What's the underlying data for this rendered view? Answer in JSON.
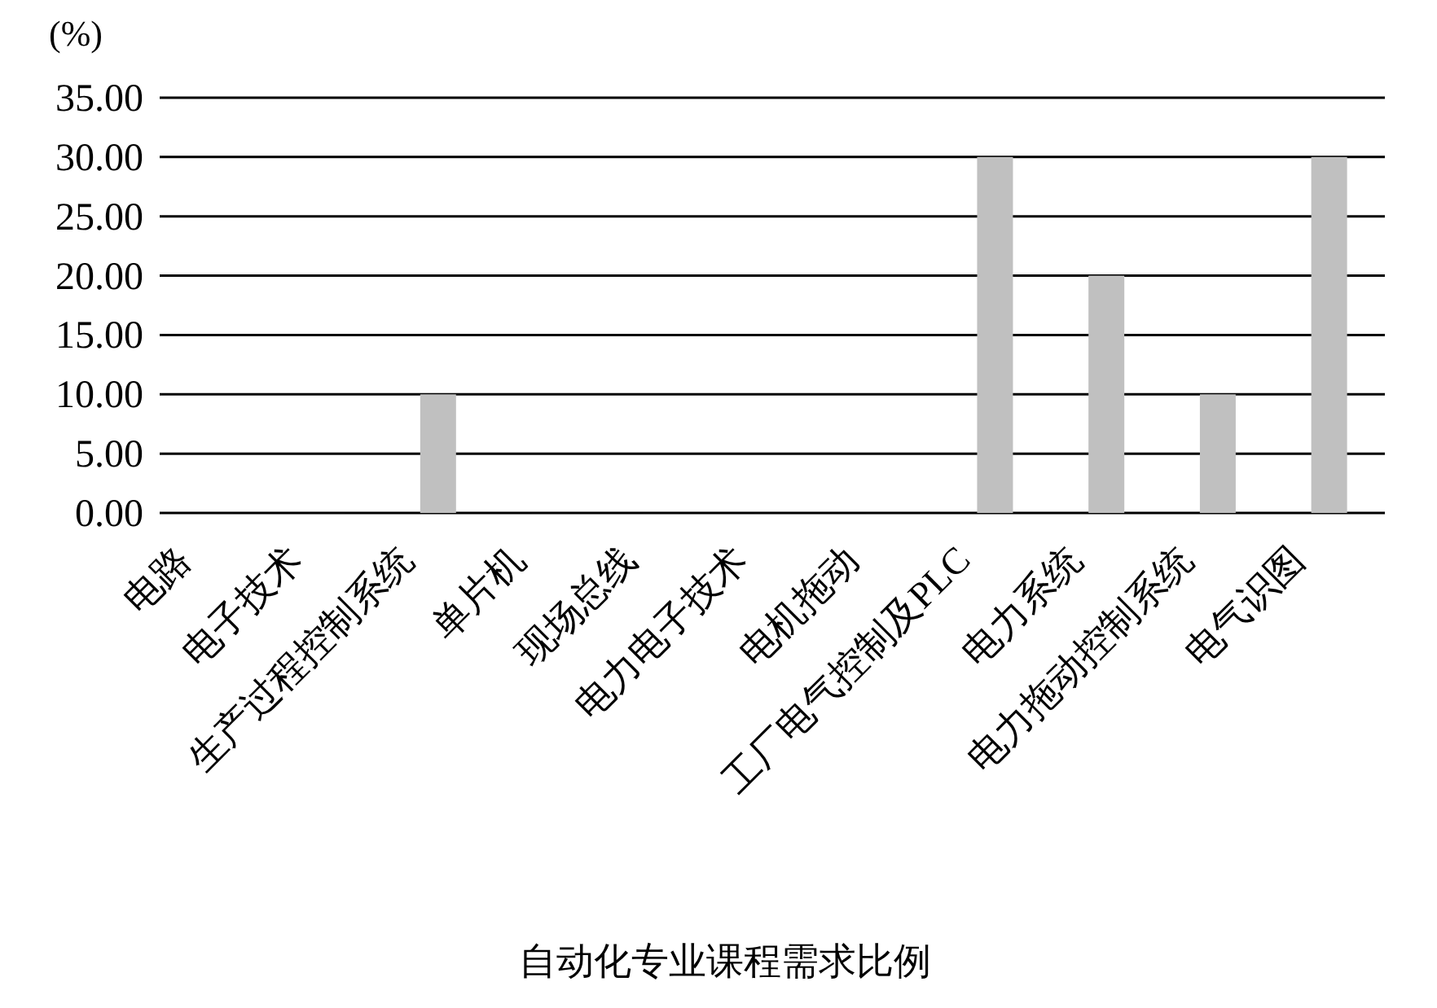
{
  "chart_data": {
    "type": "bar",
    "title": "自动化专业课程需求比例",
    "ylabel": "(%)",
    "categories": [
      "电路",
      "电子技术",
      "生产过程控制系统",
      "单片机",
      "现场总线",
      "电力电子技术",
      "电机拖动",
      "工厂电气控制及PLC",
      "电力系统",
      "电力拖动控制系统",
      "电气识图"
    ],
    "values": [
      0,
      0,
      10,
      0,
      0,
      0,
      0,
      30,
      20,
      10,
      30
    ],
    "color": "#c0c0c0",
    "ylim": [
      0,
      35
    ],
    "yticks": [
      {
        "value": 0,
        "label": "0.00"
      },
      {
        "value": 5,
        "label": "5.00"
      },
      {
        "value": 10,
        "label": "10.00"
      },
      {
        "value": 15,
        "label": "15.00"
      },
      {
        "value": 20,
        "label": "20.00"
      },
      {
        "value": 25,
        "label": "25.00"
      },
      {
        "value": 30,
        "label": "30.00"
      },
      {
        "value": 35,
        "label": "35.00"
      }
    ],
    "grid": "y"
  }
}
